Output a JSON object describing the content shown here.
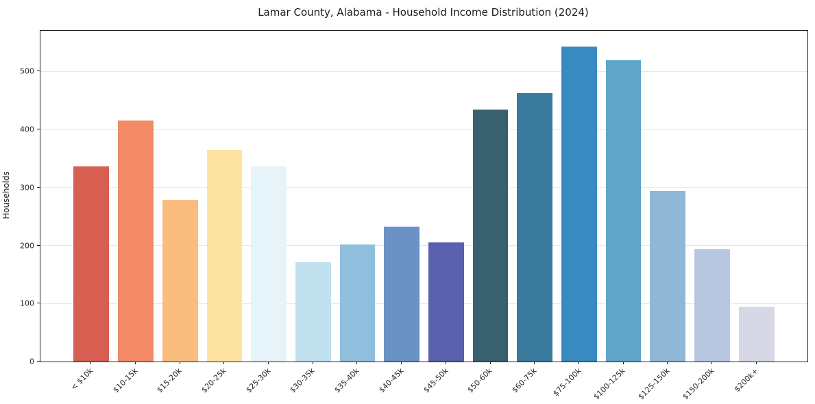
{
  "chart_data": {
    "type": "bar",
    "title": "Lamar County, Alabama - Household Income Distribution (2024)",
    "xlabel": "",
    "ylabel": "Households",
    "categories": [
      "< $10k",
      "$10-15k",
      "$15-20k",
      "$20-25k",
      "$25-30k",
      "$30-35k",
      "$35-40k",
      "$40-45k",
      "$45-50k",
      "$50-60k",
      "$60-75k",
      "$75-100k",
      "$100-125k",
      "$125-150k",
      "$150-200k",
      "$200k+"
    ],
    "values": [
      336,
      416,
      278,
      365,
      336,
      171,
      202,
      233,
      205,
      434,
      463,
      543,
      519,
      294,
      194,
      95
    ],
    "bar_colors": [
      "#d65f51",
      "#f28a65",
      "#fbbd7f",
      "#fde3a0",
      "#e6f3f8",
      "#c0e0ee",
      "#90bedd",
      "#6a92c5",
      "#5a5fae",
      "#38606f",
      "#3a7a9c",
      "#388ac1",
      "#5ea5c9",
      "#90b7d5",
      "#b8c7df",
      "#d7d8e5"
    ],
    "yticks": [
      0,
      100,
      200,
      300,
      400,
      500
    ],
    "ylim": [
      0,
      570
    ],
    "legend": "none",
    "grid": "horizontal-light"
  },
  "style_colors": {
    "grid": "#e7e7e7",
    "axis": "#1a1a1a",
    "tick_text": "#262626",
    "background": "#ffffff"
  }
}
